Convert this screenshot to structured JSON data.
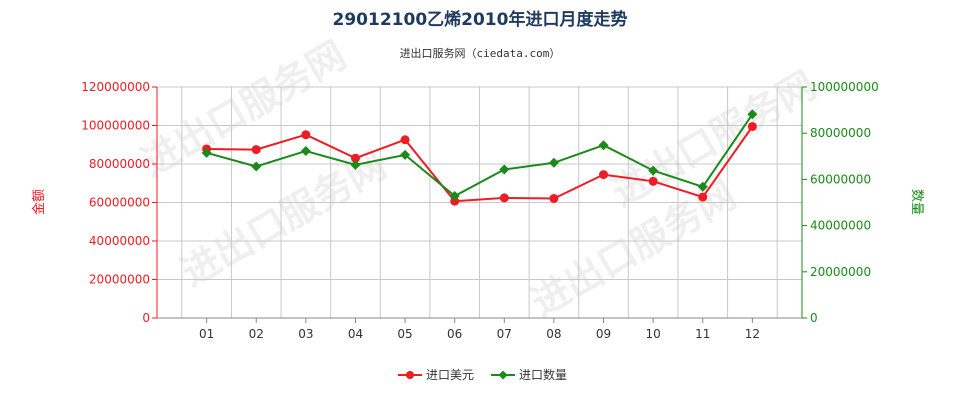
{
  "chart_data": {
    "type": "line",
    "title": "29012100乙烯2010年进口月度走势",
    "subtitle": "进出口服务网（ciedata.com）",
    "categories": [
      "01",
      "02",
      "03",
      "04",
      "05",
      "06",
      "07",
      "08",
      "09",
      "10",
      "11",
      "12"
    ],
    "y_left": {
      "label": "金额",
      "ylim": [
        0,
        120000000
      ],
      "ticks": [
        "0",
        "20000000",
        "40000000",
        "60000000",
        "80000000",
        "100000000",
        "120000000"
      ],
      "color": "#ee1c25"
    },
    "y_right": {
      "label": "数量",
      "ylim": [
        0,
        100000000
      ],
      "ticks": [
        "0",
        "20000000",
        "40000000",
        "60000000",
        "80000000",
        "100000000"
      ],
      "color": "#1a8a1a"
    },
    "series": [
      {
        "name": "进口美元",
        "axis": "left",
        "color": "#ee1c25",
        "marker": "circle",
        "values": [
          87800000,
          87500000,
          95200000,
          83000000,
          92600000,
          60700000,
          62400000,
          62100000,
          74500000,
          71000000,
          62800000,
          99500000
        ]
      },
      {
        "name": "进口数量",
        "axis": "right",
        "color": "#1a8a1a",
        "marker": "diamond",
        "values": [
          71500000,
          65600000,
          72300000,
          66300000,
          70600000,
          52800000,
          64300000,
          67200000,
          74800000,
          63800000,
          56800000,
          88200000
        ]
      }
    ],
    "grid": true,
    "legend_position": "bottom-center",
    "watermark": "进出口服务网"
  }
}
